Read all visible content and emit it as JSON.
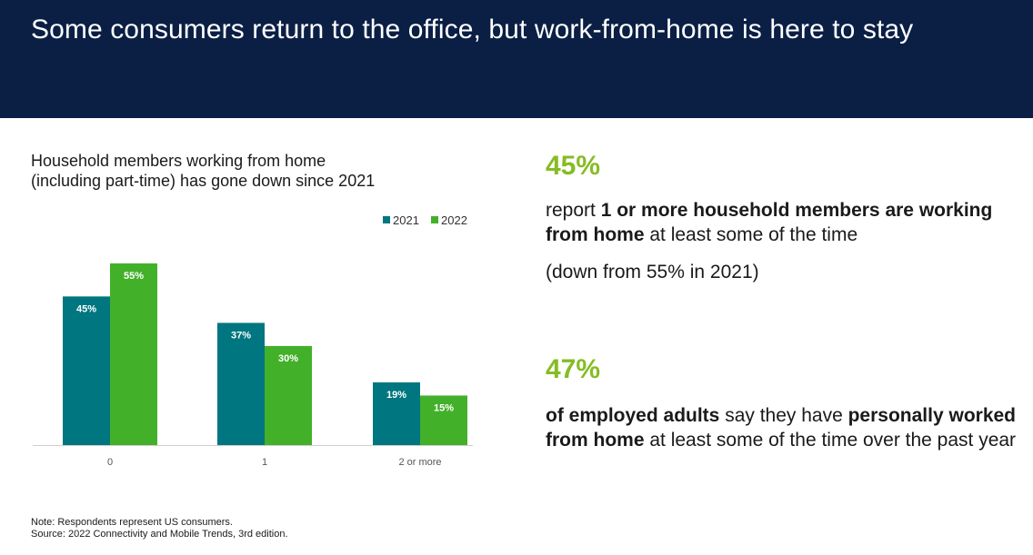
{
  "header": {
    "title": "Some consumers return to the office, but work-from-home is here to stay"
  },
  "chart_title": {
    "line1": "Household members working from home",
    "line2": "(including part-time) has gone down since 2021"
  },
  "chart_data": {
    "type": "bar",
    "categories": [
      "0",
      "1",
      "2 or more"
    ],
    "series": [
      {
        "name": "2021",
        "values": [
          45,
          37,
          19
        ],
        "labels": [
          "45%",
          "37%",
          "19%"
        ],
        "color": "#007680"
      },
      {
        "name": "2022",
        "values": [
          55,
          30,
          15
        ],
        "labels": [
          "55%",
          "30%",
          "15%"
        ],
        "color": "#43b02a"
      }
    ],
    "ylim": [
      0,
      55
    ],
    "legend": "top-right",
    "grid": false
  },
  "stat1": {
    "value": "45%",
    "text": {
      "pre": "report ",
      "bold": "1 or more household members are working from home",
      "post": " at least some of the time"
    },
    "note": "(down from 55% in 2021)"
  },
  "stat2": {
    "value": "47%",
    "text": {
      "bold1": "of employed adults",
      "mid": " say they have ",
      "bold2": "personally worked from home",
      "post": " at least some of the time over the past year"
    }
  },
  "footnote": {
    "note": "Note: Respondents represent US consumers.",
    "source": "Source: 2022 Connectivity and Mobile Trends, 3rd edition."
  },
  "colors": {
    "header_bg": "#0b1f45",
    "accent_green": "#86bc25"
  }
}
